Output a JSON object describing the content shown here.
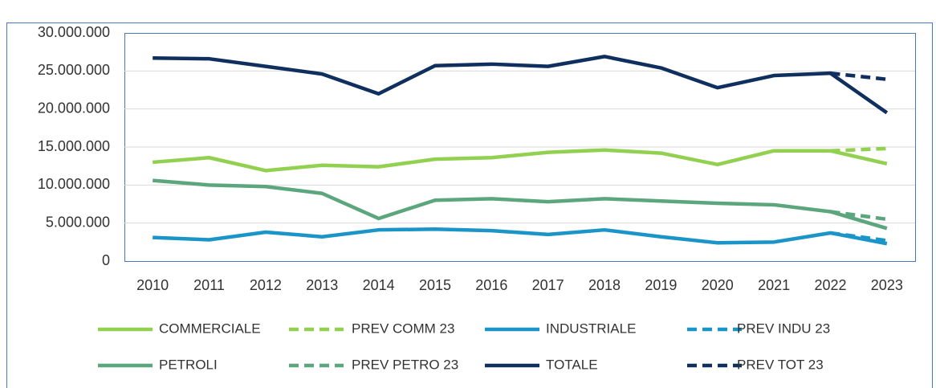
{
  "chart_data": {
    "type": "line",
    "categories": [
      "2010",
      "2011",
      "2012",
      "2013",
      "2014",
      "2015",
      "2016",
      "2017",
      "2018",
      "2019",
      "2020",
      "2021",
      "2022",
      "2023"
    ],
    "series": [
      {
        "name": "COMMERCIALE",
        "color": "#92d050",
        "dashed": false,
        "values": [
          13000000,
          13600000,
          11900000,
          12600000,
          12400000,
          13400000,
          13600000,
          14300000,
          14600000,
          14200000,
          12700000,
          14500000,
          14500000,
          12800000
        ]
      },
      {
        "name": "PREV COMM 23",
        "color": "#92d050",
        "dashed": true,
        "values": [
          null,
          null,
          null,
          null,
          null,
          null,
          null,
          null,
          null,
          null,
          null,
          null,
          14500000,
          14800000
        ]
      },
      {
        "name": "INDUSTRIALE",
        "color": "#1b95c8",
        "dashed": false,
        "values": [
          3100000,
          2800000,
          3800000,
          3200000,
          4100000,
          4200000,
          4000000,
          3500000,
          4100000,
          3200000,
          2400000,
          2500000,
          3700000,
          2300000
        ]
      },
      {
        "name": "PREV INDU 23",
        "color": "#1b95c8",
        "dashed": true,
        "values": [
          null,
          null,
          null,
          null,
          null,
          null,
          null,
          null,
          null,
          null,
          null,
          null,
          3700000,
          2700000
        ]
      },
      {
        "name": "PETROLI",
        "color": "#5ba67c",
        "dashed": false,
        "values": [
          10600000,
          10000000,
          9800000,
          8900000,
          5600000,
          8000000,
          8200000,
          7800000,
          8200000,
          7900000,
          7600000,
          7400000,
          6500000,
          4300000
        ]
      },
      {
        "name": "PREV PETRO 23",
        "color": "#5ba67c",
        "dashed": true,
        "values": [
          null,
          null,
          null,
          null,
          null,
          null,
          null,
          null,
          null,
          null,
          null,
          null,
          6500000,
          5500000
        ]
      },
      {
        "name": "TOTALE",
        "color": "#0f2f5e",
        "dashed": false,
        "values": [
          26700000,
          26600000,
          25600000,
          24600000,
          22000000,
          25700000,
          25900000,
          25600000,
          26900000,
          25400000,
          22800000,
          24400000,
          24700000,
          19500000
        ]
      },
      {
        "name": "PREV TOT 23",
        "color": "#0f2f5e",
        "dashed": true,
        "values": [
          null,
          null,
          null,
          null,
          null,
          null,
          null,
          null,
          null,
          null,
          null,
          null,
          24700000,
          23900000
        ]
      }
    ],
    "ylim": [
      0,
      30000000
    ],
    "yticks": [
      0,
      {
        "value": 5000000,
        "label": "5.000.000"
      },
      {
        "value": 10000000,
        "label": "10.000.000"
      },
      {
        "value": 15000000,
        "label": "15.000.000"
      },
      {
        "value": 20000000,
        "label": "20.000.000"
      },
      {
        "value": 25000000,
        "label": "25.000.000"
      },
      {
        "value": 30000000,
        "label": "30.000.000"
      }
    ],
    "grid": true
  }
}
